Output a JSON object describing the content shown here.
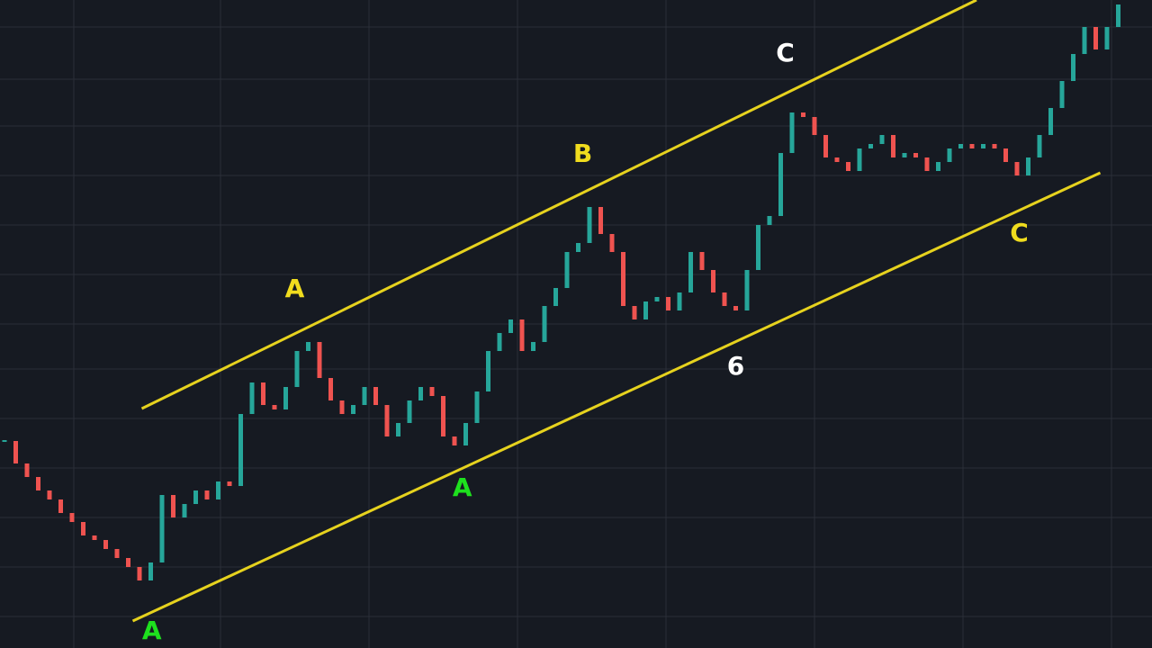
{
  "chart_data": {
    "type": "candlestick",
    "values": [
      230,
      205,
      190,
      175,
      165,
      150,
      140,
      125,
      120,
      110,
      100,
      90,
      75,
      95,
      170,
      145,
      160,
      175,
      165,
      185,
      180,
      260,
      295,
      270,
      265,
      290,
      330,
      340,
      300,
      275,
      260,
      270,
      290,
      270,
      235,
      250,
      275,
      290,
      280,
      235,
      225,
      250,
      285,
      330,
      350,
      365,
      330,
      340,
      380,
      400,
      440,
      450,
      490,
      460,
      440,
      380,
      365,
      385,
      390,
      375,
      395,
      440,
      420,
      395,
      380,
      375,
      420,
      470,
      480,
      550,
      595,
      590,
      570,
      545,
      540,
      530,
      555,
      560,
      570,
      545,
      550,
      545,
      530,
      540,
      555,
      560,
      555,
      560,
      555,
      540,
      525,
      545,
      570,
      600,
      630,
      660,
      690,
      665,
      690,
      715
    ],
    "up_color": "#26a69a",
    "down_color": "#ef5350",
    "xlim": [
      -0.4,
      102.0
    ],
    "ylim": [
      0,
      720
    ],
    "trendlines": [
      {
        "x": [
          12.2,
          86.4
        ],
        "y": [
          266,
          720
        ],
        "color": "#e6d21e"
      },
      {
        "x": [
          11.4,
          97.4
        ],
        "y": [
          30,
          528
        ],
        "color": "#e6d21e"
      }
    ],
    "annotations": [
      {
        "text": "A",
        "x": 13.1,
        "y": 18,
        "color": "#1ee01e"
      },
      {
        "text": "A",
        "x": 25.8,
        "y": 398,
        "color": "#f0dc1e"
      },
      {
        "text": "A",
        "x": 40.7,
        "y": 177,
        "color": "#1ee01e"
      },
      {
        "text": "B",
        "x": 51.4,
        "y": 548,
        "color": "#f0dc1e"
      },
      {
        "text": "6",
        "x": 65.0,
        "y": 312,
        "color": "#ffffff"
      },
      {
        "text": "C",
        "x": 69.4,
        "y": 660,
        "color": "#ffffff"
      },
      {
        "text": "C",
        "x": 90.2,
        "y": 460,
        "color": "#f0dc1e"
      }
    ]
  }
}
